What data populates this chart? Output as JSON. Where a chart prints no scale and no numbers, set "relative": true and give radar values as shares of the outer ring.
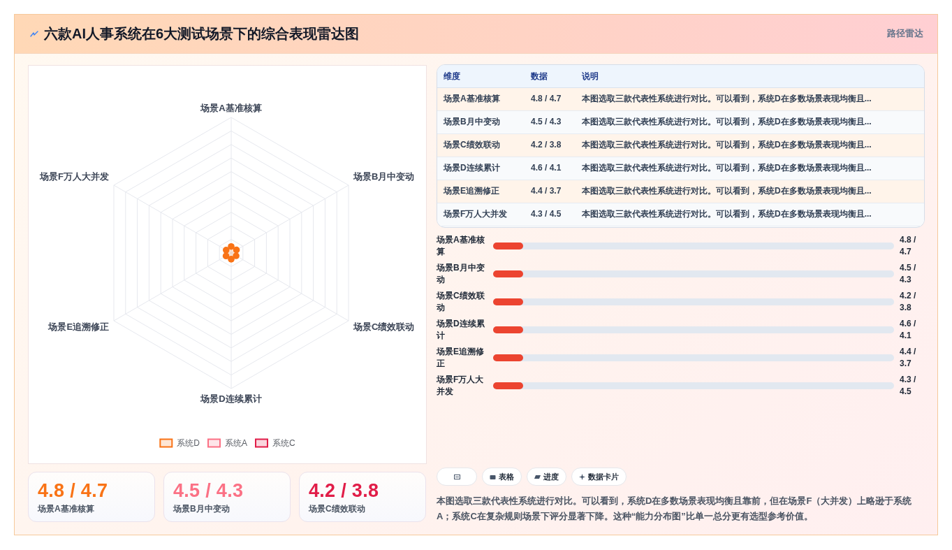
{
  "chart_data": [
    {
      "type": "radar",
      "title": "六款AI人事系统在6大测试场景下的综合表现雷达图",
      "annotations": [
        "路径雷达"
      ],
      "categories": [
        "场景A基准核算",
        "场景B月中变动",
        "场景C绩效联动",
        "场景D连续累计",
        "场景E追溯修正",
        "场景F万人大并发"
      ],
      "relative": true,
      "grid": true,
      "legend": "bottom",
      "marker": "circle",
      "line_style": "solid",
      "series": [
        {
          "name": "系统D",
          "color": "#f97316",
          "values": [
            0.048,
            0.045,
            0.042,
            0.046,
            0.044,
            0.043
          ]
        },
        {
          "name": "系统A",
          "color": "#fb7185",
          "values": [
            null,
            null,
            null,
            null,
            null,
            null
          ]
        },
        {
          "name": "系统C",
          "color": "#e11d48",
          "values": [
            null,
            null,
            null,
            null,
            null,
            null
          ]
        }
      ]
    },
    {
      "type": "other",
      "categories": [
        "维度",
        "数据",
        "说明"
      ],
      "cell_labels": [
        [
          "场景A基准核算",
          "4.8 / 4.7",
          "本图选取三款代表性系统进行对比。可以看到，系统D在多数场景表现均衡且..."
        ],
        [
          "场景B月中变动",
          "4.5 / 4.3",
          "本图选取三款代表性系统进行对比。可以看到，系统D在多数场景表现均衡且..."
        ],
        [
          "场景C绩效联动",
          "4.2 / 3.8",
          "本图选取三款代表性系统进行对比。可以看到，系统D在多数场景表现均衡且..."
        ],
        [
          "场景D连续累计",
          "4.6 / 4.1",
          "本图选取三款代表性系统进行对比。可以看到，系统D在多数场景表现均衡且..."
        ],
        [
          "场景E追溯修正",
          "4.4 / 3.7",
          "本图选取三款代表性系统进行对比。可以看到，系统D在多数场景表现均衡且..."
        ],
        [
          "场景F万人大并发",
          "4.3 / 4.5",
          "本图选取三款代表性系统进行对比。可以看到，系统D在多数场景表现均衡且..."
        ]
      ]
    },
    {
      "type": "other",
      "categories": [
        "场景A基准核算",
        "场景B月中变动",
        "场景C绩效联动",
        "场景D连续累计",
        "场景E追溯修正",
        "场景F万人大并发"
      ],
      "value_labels": [
        "4.8 / 4.7",
        "4.5 / 4.3",
        "4.2 / 3.8",
        "4.6 / 4.1",
        "4.4 / 3.7",
        "4.3 / 4.5"
      ]
    },
    {
      "type": "other",
      "categories": [
        "场景A基准核算",
        "场景B月中变动",
        "场景C绩效联动"
      ],
      "value_labels": [
        "4.8 / 4.7",
        "4.5 / 4.3",
        "4.2 / 3.8"
      ]
    },
    {
      "type": "other",
      "categories": [
        null,
        "表格",
        "进度",
        "数据卡片"
      ],
      "annotations": [
        "本图选取三款代表性系统进行对比。可以看到，系统D在多数场景表现均衡且靠前，但在场景F（大并发）上略逊于系统A；系统C在复杂规则场景下评分显著下降。这种“能力分布图”比单一总分更有选型参考价值。"
      ]
    }
  ]
}
